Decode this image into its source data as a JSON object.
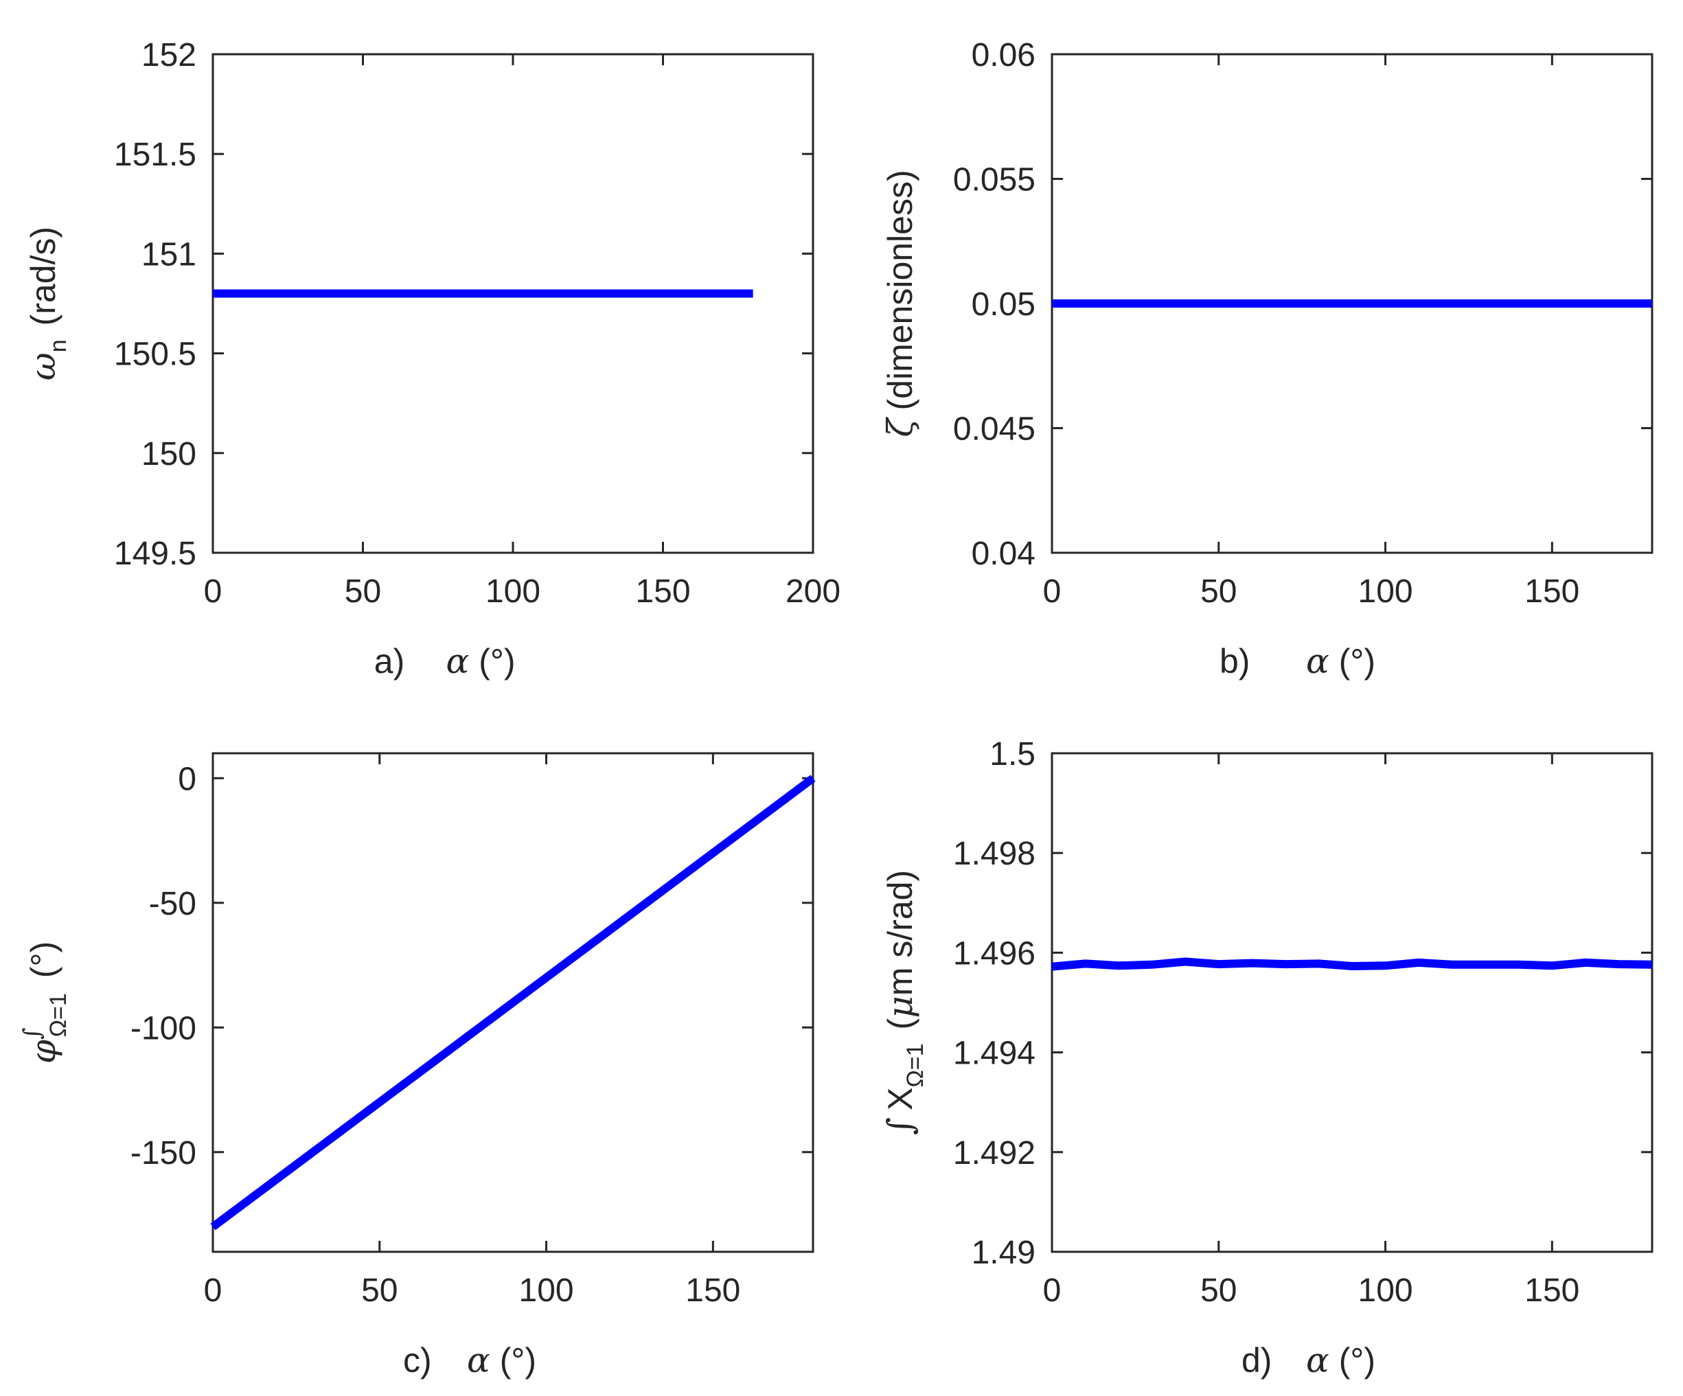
{
  "chart_data": [
    {
      "type": "line",
      "panel_label": "a)",
      "xlabel_symbol": "α",
      "xlabel_unit": "(°)",
      "ylabel_symbol": "ω",
      "ylabel_sub": "n",
      "ylabel_unit": "(rad/s)",
      "xlim": [
        0,
        200
      ],
      "ylim": [
        149.5,
        152
      ],
      "xticks": [
        0,
        50,
        100,
        150,
        200
      ],
      "yticks": [
        149.5,
        150,
        150.5,
        151,
        151.5,
        152
      ],
      "xtick_labels": [
        "0",
        "50",
        "100",
        "150",
        "200"
      ],
      "ytick_labels": [
        "149.5",
        "150",
        "150.5",
        "151",
        "151.5",
        "152"
      ],
      "series": [
        {
          "x": [
            0,
            20,
            40,
            60,
            80,
            100,
            120,
            140,
            160,
            180
          ],
          "y": [
            150.8,
            150.8,
            150.8,
            150.8,
            150.8,
            150.8,
            150.8,
            150.8,
            150.8,
            150.8
          ]
        }
      ],
      "grid": false,
      "color": "#0000ff"
    },
    {
      "type": "line",
      "panel_label": "b)",
      "xlabel_symbol": "α",
      "xlabel_unit": "(°)",
      "ylabel_symbol": "ζ",
      "ylabel_sub": "",
      "ylabel_unit": "(dimensionless)",
      "xlim": [
        0,
        180
      ],
      "ylim": [
        0.04,
        0.06
      ],
      "xticks": [
        0,
        50,
        100,
        150
      ],
      "yticks": [
        0.04,
        0.045,
        0.05,
        0.055,
        0.06
      ],
      "xtick_labels": [
        "0",
        "50",
        "100",
        "150"
      ],
      "ytick_labels": [
        "0.04",
        "0.045",
        "0.05",
        "0.055",
        "0.06"
      ],
      "series": [
        {
          "x": [
            0,
            20,
            40,
            60,
            80,
            100,
            120,
            140,
            160,
            180
          ],
          "y": [
            0.05,
            0.05,
            0.05,
            0.05,
            0.05,
            0.05,
            0.05,
            0.05,
            0.05,
            0.05
          ]
        }
      ],
      "grid": false,
      "color": "#0000ff"
    },
    {
      "type": "line",
      "panel_label": "c)",
      "xlabel_symbol": "α",
      "xlabel_unit": "(°)",
      "ylabel_symbol": "φ",
      "ylabel_sup": "∫",
      "ylabel_sub": "Ω=1",
      "ylabel_unit": "(°)",
      "xlim": [
        0,
        180
      ],
      "ylim": [
        -190,
        10
      ],
      "xticks": [
        0,
        50,
        100,
        150
      ],
      "yticks": [
        -150,
        -100,
        -50,
        0
      ],
      "xtick_labels": [
        "0",
        "50",
        "100",
        "150"
      ],
      "ytick_labels": [
        "-150",
        "-100",
        "-50",
        "0"
      ],
      "series": [
        {
          "x": [
            0,
            180
          ],
          "y": [
            -180,
            0
          ]
        }
      ],
      "grid": false,
      "color": "#0000ff"
    },
    {
      "type": "line",
      "panel_label": "d)",
      "xlabel_symbol": "α",
      "xlabel_unit": "(°)",
      "ylabel_prefix": "∫",
      "ylabel_symbol": "X",
      "ylabel_sub": "Ω=1",
      "ylabel_unit_greek": "μ",
      "ylabel_unit": "m s/rad)",
      "xlim": [
        0,
        180
      ],
      "ylim": [
        1.49,
        1.5
      ],
      "xticks": [
        0,
        50,
        100,
        150
      ],
      "yticks": [
        1.49,
        1.492,
        1.494,
        1.496,
        1.498,
        1.5
      ],
      "xtick_labels": [
        "0",
        "50",
        "100",
        "150"
      ],
      "ytick_labels": [
        "1.49",
        "1.492",
        "1.494",
        "1.496",
        "1.498",
        "1.5"
      ],
      "series": [
        {
          "x": [
            0,
            10,
            20,
            30,
            40,
            50,
            60,
            70,
            80,
            90,
            100,
            110,
            120,
            130,
            140,
            150,
            160,
            170,
            180
          ],
          "y": [
            1.49572,
            1.49578,
            1.49574,
            1.49576,
            1.49582,
            1.49577,
            1.49579,
            1.49577,
            1.49578,
            1.49573,
            1.49574,
            1.4958,
            1.49576,
            1.49576,
            1.49576,
            1.49574,
            1.4958,
            1.49577,
            1.49576
          ]
        }
      ],
      "grid": false,
      "color": "#0000ff"
    }
  ]
}
